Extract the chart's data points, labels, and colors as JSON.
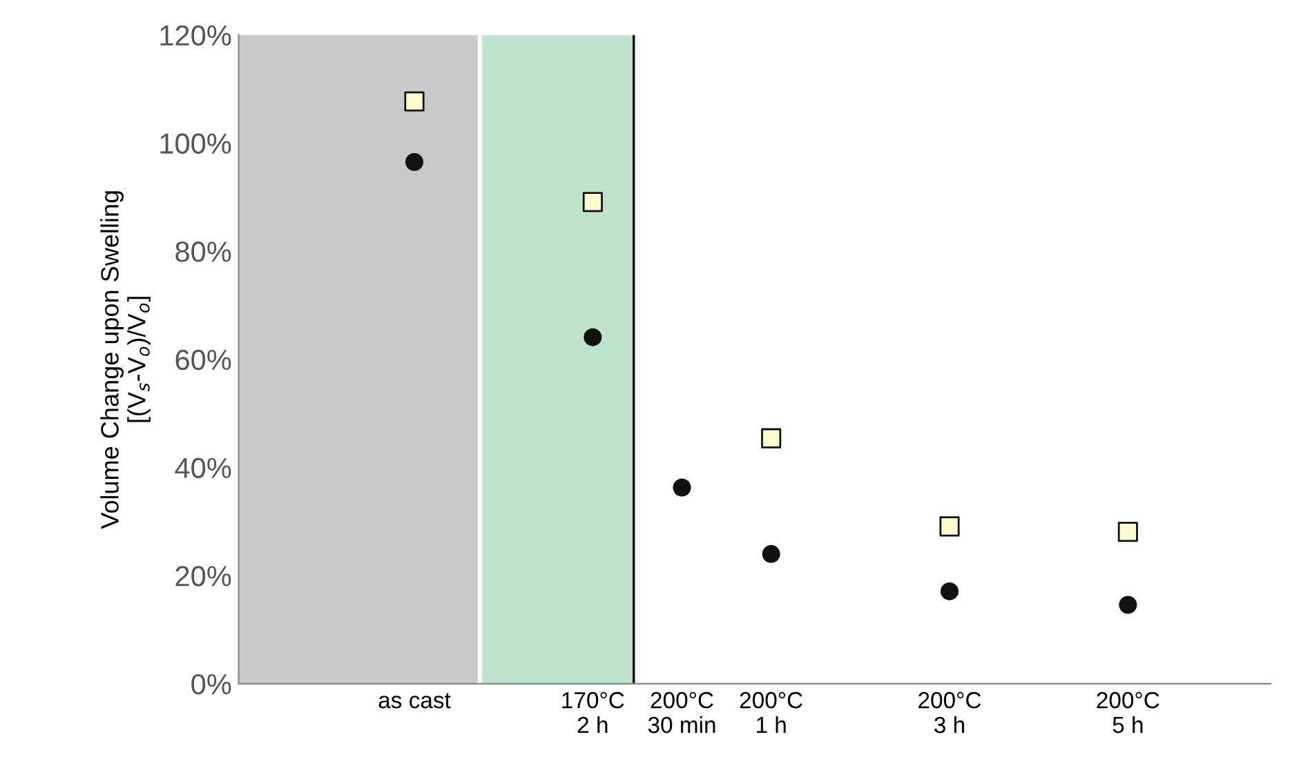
{
  "chart_data": {
    "type": "scatter",
    "ylabel": "Volume Change upon Swelling\n[(V$_{s}$-V$_{o}$)/V$_{o}$]",
    "categories": [
      "as cast",
      null,
      "170°C\n2 h",
      "200°C\n30 min",
      "200°C\n1 h",
      null,
      "200°C\n3 h",
      null,
      "200°C\n5 h"
    ],
    "series": [
      {
        "color": "#fffbd0",
        "marker": "square",
        "values": [
          107.7,
          null,
          89.1,
          null,
          45.4,
          null,
          29.1,
          null,
          28.1
        ]
      },
      {
        "color": "#111111",
        "marker": "circle",
        "values": [
          96.5,
          null,
          64.1,
          36.3,
          24.0,
          null,
          17.1,
          null,
          14.6
        ]
      }
    ],
    "ylim": [
      0,
      120
    ],
    "yticks": [
      {
        "value": 0,
        "label": "0%"
      },
      {
        "value": 20,
        "label": "20%"
      },
      {
        "value": 40,
        "label": "40%"
      },
      {
        "value": 60,
        "label": "60%"
      },
      {
        "value": 80,
        "label": "80%"
      },
      {
        "value": 100,
        "label": "100%"
      },
      {
        "value": 120,
        "label": "120%"
      }
    ],
    "grid": false,
    "legend": false
  }
}
